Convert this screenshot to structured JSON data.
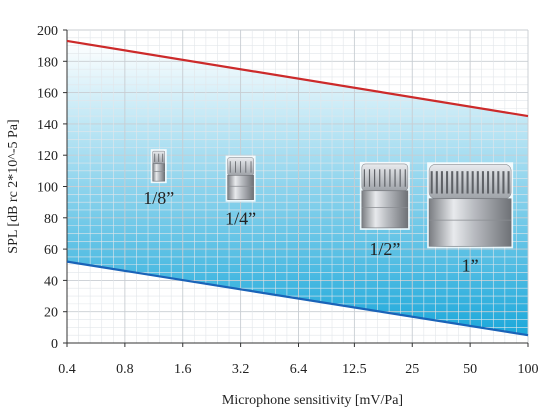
{
  "chart_data": {
    "type": "line",
    "title": "",
    "xlabel": "Microphone sensitivity [mV/Pa]",
    "ylabel": "SPL [dB rc 2*10^-5 Pa]",
    "x_scale": "log2",
    "x_ticks": [
      "0.4",
      "0.8",
      "1.6",
      "3.2",
      "6.4",
      "12.5",
      "25",
      "50",
      "100"
    ],
    "y_ticks": [
      "0",
      "20",
      "40",
      "60",
      "80",
      "100",
      "120",
      "140",
      "160",
      "180",
      "200"
    ],
    "ylim": [
      0,
      200
    ],
    "xlim": [
      0.4,
      100
    ],
    "grid": true,
    "legend": "none",
    "series": [
      {
        "x": [
          0.4,
          100
        ],
        "y": [
          193,
          145
        ],
        "color": "#cc2a2a"
      },
      {
        "x": [
          0.4,
          100
        ],
        "y": [
          52,
          5
        ],
        "color": "#1a63b8"
      }
    ],
    "fill_between": {
      "color_top": "#ffffff",
      "color_bottom": "#0fa3d8"
    },
    "annotations": [
      {
        "text": "1/8”",
        "x": 1.2,
        "y": 113,
        "icon": "microphone-capsule-icon"
      },
      {
        "text": "1/4”",
        "x": 3.2,
        "y": 105,
        "icon": "microphone-capsule-icon"
      },
      {
        "text": "1/2”",
        "x": 18,
        "y": 94,
        "icon": "microphone-capsule-icon"
      },
      {
        "text": "1”",
        "x": 50,
        "y": 88,
        "icon": "microphone-capsule-icon"
      }
    ]
  }
}
